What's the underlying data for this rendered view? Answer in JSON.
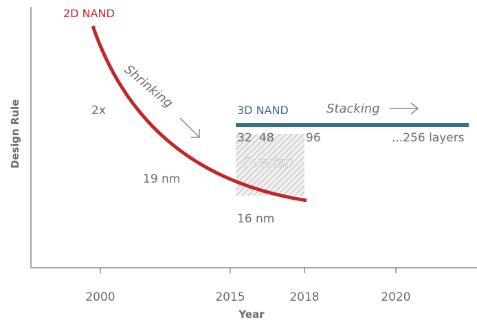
{
  "axes": {
    "y_label": "Design Rule",
    "x_label": "Year",
    "x_ticks": [
      "2000",
      "2015",
      "2018",
      "2020"
    ]
  },
  "nand_2d": {
    "label": "2D NAND",
    "arrow_label": "Shrinking",
    "notes": [
      "2x",
      "19 nm",
      "16 nm"
    ]
  },
  "nand_3d": {
    "label": "3D NAND",
    "arrow_label": "Stacking",
    "layers": [
      "32",
      "48",
      "96",
      "...256 layers"
    ]
  },
  "overlap": "Overlap"
}
